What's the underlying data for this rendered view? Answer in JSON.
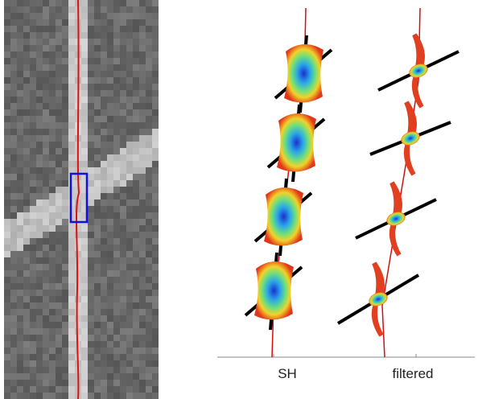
{
  "panels": {
    "labels": [
      "SH",
      "filtered"
    ]
  }
}
